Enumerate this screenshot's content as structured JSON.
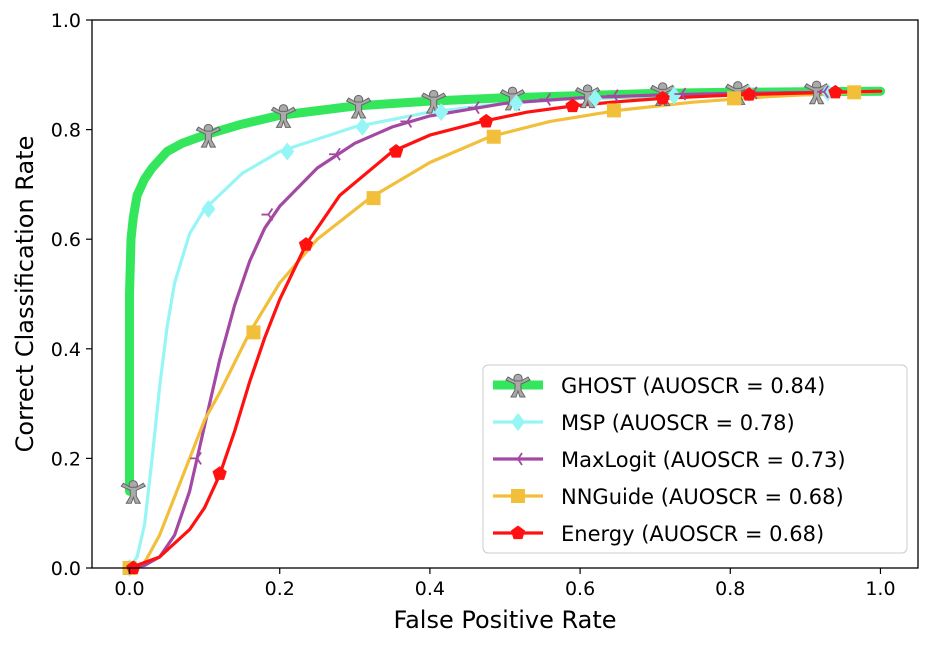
{
  "chart_data": {
    "type": "line",
    "title": "",
    "xlabel": "False Positive Rate",
    "ylabel": "Correct Classification Rate",
    "xlim": [
      -0.05,
      1.05
    ],
    "ylim": [
      0.0,
      1.0
    ],
    "xticks": [
      0.0,
      0.2,
      0.4,
      0.6,
      0.8,
      1.0
    ],
    "yticks": [
      0.0,
      0.2,
      0.4,
      0.6,
      0.8,
      1.0
    ],
    "xtick_labels": [
      "0.0",
      "0.2",
      "0.4",
      "0.6",
      "0.8",
      "1.0"
    ],
    "ytick_labels": [
      "0.0",
      "0.2",
      "0.4",
      "0.6",
      "0.8",
      "1.0"
    ],
    "grid": false,
    "legend_position": "lower-right",
    "series": [
      {
        "name": "GHOST (AUOSCR = 0.84)",
        "color": "#33e65c",
        "marker": "ghost",
        "line_width": "thick",
        "x": [
          0.0,
          0.0,
          0.002,
          0.005,
          0.01,
          0.02,
          0.03,
          0.05,
          0.07,
          0.1,
          0.15,
          0.2,
          0.3,
          0.4,
          0.5,
          0.6,
          0.7,
          0.8,
          0.9,
          1.0
        ],
        "y": [
          0.14,
          0.5,
          0.6,
          0.64,
          0.68,
          0.71,
          0.73,
          0.76,
          0.775,
          0.79,
          0.81,
          0.826,
          0.843,
          0.852,
          0.858,
          0.862,
          0.866,
          0.868,
          0.869,
          0.87
        ],
        "marker_x": [
          0.005,
          0.105,
          0.205,
          0.305,
          0.405,
          0.51,
          0.61,
          0.71,
          0.81,
          0.915
        ],
        "marker_y": [
          0.14,
          0.79,
          0.826,
          0.843,
          0.852,
          0.858,
          0.862,
          0.866,
          0.868,
          0.869
        ]
      },
      {
        "name": "MSP (AUOSCR = 0.78)",
        "color": "#96f5f5",
        "marker": "diamond",
        "line_width": "medium",
        "x": [
          0.0,
          0.01,
          0.02,
          0.03,
          0.04,
          0.05,
          0.06,
          0.08,
          0.1,
          0.15,
          0.2,
          0.3,
          0.4,
          0.5,
          0.6,
          0.7,
          0.8,
          0.9,
          1.0
        ],
        "y": [
          0.0,
          0.02,
          0.08,
          0.2,
          0.33,
          0.44,
          0.52,
          0.61,
          0.655,
          0.72,
          0.76,
          0.805,
          0.832,
          0.848,
          0.857,
          0.862,
          0.866,
          0.868,
          0.87
        ],
        "marker_x": [
          0.0,
          0.105,
          0.21,
          0.31,
          0.415,
          0.515,
          0.62,
          0.725,
          0.825,
          0.93
        ],
        "marker_y": [
          0.0,
          0.655,
          0.76,
          0.805,
          0.832,
          0.848,
          0.857,
          0.862,
          0.866,
          0.868
        ]
      },
      {
        "name": "MaxLogit (AUOSCR = 0.73)",
        "color": "#a349a4",
        "marker": "tri-left",
        "line_width": "medium",
        "x": [
          0.0,
          0.02,
          0.04,
          0.06,
          0.08,
          0.1,
          0.12,
          0.14,
          0.16,
          0.18,
          0.2,
          0.25,
          0.3,
          0.35,
          0.4,
          0.5,
          0.6,
          0.7,
          0.8,
          0.9,
          1.0
        ],
        "y": [
          0.0,
          0.005,
          0.02,
          0.06,
          0.14,
          0.26,
          0.38,
          0.48,
          0.56,
          0.62,
          0.66,
          0.73,
          0.775,
          0.805,
          0.825,
          0.848,
          0.858,
          0.863,
          0.866,
          0.868,
          0.87
        ],
        "marker_x": [
          0.0,
          0.09,
          0.185,
          0.275,
          0.37,
          0.46,
          0.555,
          0.645,
          0.735,
          0.83,
          0.925
        ],
        "marker_y": [
          0.0,
          0.2,
          0.645,
          0.755,
          0.815,
          0.84,
          0.855,
          0.862,
          0.865,
          0.867,
          0.869
        ]
      },
      {
        "name": "NNGuide (AUOSCR = 0.68)",
        "color": "#f2bf3a",
        "marker": "square",
        "line_width": "medium",
        "x": [
          0.0,
          0.02,
          0.04,
          0.06,
          0.08,
          0.1,
          0.12,
          0.16,
          0.2,
          0.25,
          0.32,
          0.4,
          0.48,
          0.56,
          0.65,
          0.75,
          0.85,
          0.97,
          1.0
        ],
        "y": [
          0.0,
          0.01,
          0.06,
          0.13,
          0.2,
          0.27,
          0.32,
          0.43,
          0.52,
          0.6,
          0.675,
          0.74,
          0.787,
          0.815,
          0.835,
          0.85,
          0.86,
          0.868,
          0.87
        ],
        "marker_x": [
          0.0,
          0.165,
          0.325,
          0.485,
          0.645,
          0.805,
          0.965
        ],
        "marker_y": [
          0.0,
          0.43,
          0.675,
          0.787,
          0.835,
          0.857,
          0.868
        ]
      },
      {
        "name": "Energy (AUOSCR = 0.68)",
        "color": "#ff1111",
        "marker": "pentagon",
        "line_width": "medium",
        "x": [
          0.0,
          0.04,
          0.08,
          0.1,
          0.12,
          0.14,
          0.16,
          0.18,
          0.2,
          0.235,
          0.28,
          0.35,
          0.4,
          0.47,
          0.53,
          0.59,
          0.65,
          0.71,
          0.77,
          0.82,
          0.88,
          0.94,
          1.0
        ],
        "y": [
          0.0,
          0.02,
          0.07,
          0.11,
          0.17,
          0.25,
          0.34,
          0.42,
          0.49,
          0.59,
          0.68,
          0.76,
          0.79,
          0.815,
          0.832,
          0.843,
          0.851,
          0.857,
          0.861,
          0.864,
          0.866,
          0.868,
          0.87
        ],
        "marker_x": [
          0.005,
          0.12,
          0.235,
          0.355,
          0.475,
          0.59,
          0.71,
          0.825,
          0.94
        ],
        "marker_y": [
          0.0,
          0.172,
          0.59,
          0.76,
          0.815,
          0.843,
          0.857,
          0.864,
          0.868
        ]
      }
    ]
  }
}
